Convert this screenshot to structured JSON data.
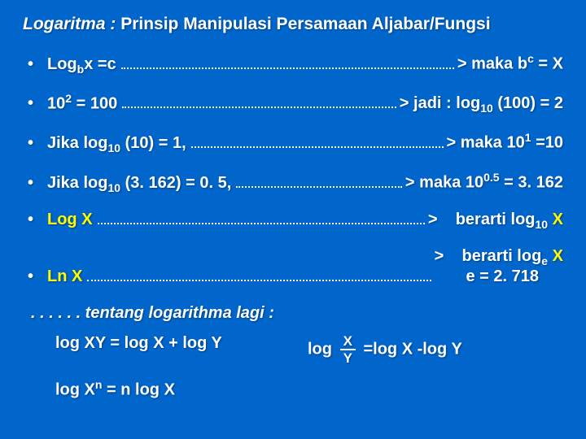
{
  "title_prefix": "Logaritma :",
  "title_rest": "Prinsip Manipulasi Persamaan Aljabar/Fungsi",
  "items": [
    {
      "left_html": "Log<sub>b</sub>x =c",
      "right_html": "> maka b<sup>c</sup> = X"
    },
    {
      "left_html": "10<sup>2</sup> = 100",
      "right_html": "> jadi :  log<sub>10</sub> (100) = 2"
    },
    {
      "left_html": "Jika log<sub>10</sub> (10) = 1,",
      "right_html": "> maka 10<sup>1</sup> =10"
    },
    {
      "left_html": "Jika log<sub>10</sub> (3. 162) = 0. 5,",
      "right_html": "> maka  10<sup>0.5</sup> = 3. 162"
    },
    {
      "left_html": "<span class='yellow'>Log X</span>",
      "right_html": ">&nbsp;&nbsp;&nbsp;&nbsp;berarti log<sub>10</sub> <span class='yellow'>X</span>"
    },
    {
      "left_html": "<span class='yellow'>Ln X</span>",
      "right_html": "<span class='rightblock'>>&nbsp;&nbsp;&nbsp;&nbsp;berarti log<sub>e</sub> <span class='yellow'>X</span><br>&nbsp;&nbsp;&nbsp;&nbsp;&nbsp;&nbsp;&nbsp;e = 2. 718</span>"
    }
  ],
  "footer_label": ". . . . . .  tentang logarithma lagi :",
  "eq1_left": "log XY = log X + log Y",
  "eq1_right_pre": "log",
  "eq1_frac_num": "X",
  "eq1_frac_den": "Y",
  "eq1_right_post": " =log X -log Y",
  "eq2": "log X<sup>n</sup> = n log X"
}
